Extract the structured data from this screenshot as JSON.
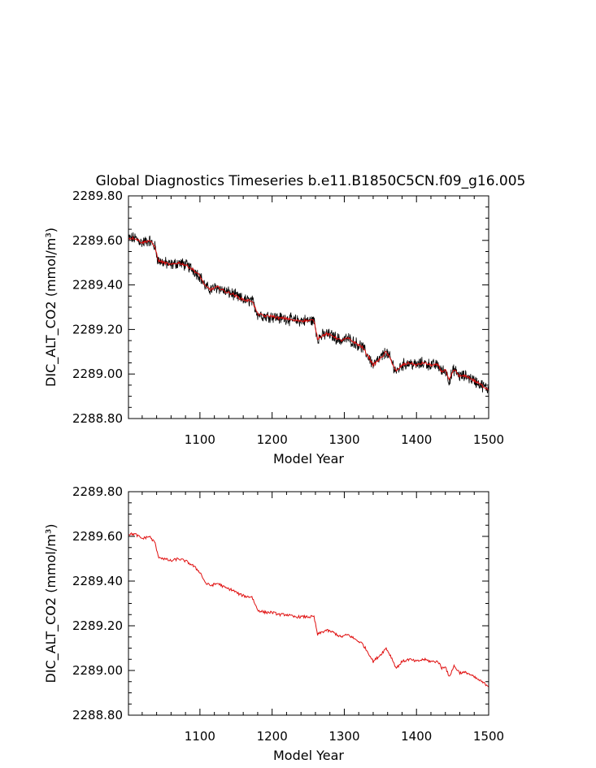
{
  "title": "Global Diagnostics Timeseries b.e11.B1850C5CN.f09_g16.005",
  "colors": {
    "raw": "#000000",
    "smoothed": "#e01010",
    "frame": "#000000"
  },
  "chart_data": [
    {
      "type": "line",
      "xlabel": "Model Year",
      "ylabel": "DIC_ALT_CO2 (mmol/m³)",
      "xlim": [
        1001,
        1500
      ],
      "ylim": [
        2288.8,
        2289.8
      ],
      "xticks": [
        1100,
        1200,
        1300,
        1400,
        1500
      ],
      "xtick_labels": [
        "1100",
        "1200",
        "1300",
        "1400",
        "1500"
      ],
      "yticks": [
        2288.8,
        2289.0,
        2289.2,
        2289.4,
        2289.6,
        2289.8
      ],
      "ytick_labels": [
        "2288.80",
        "2289.00",
        "2289.20",
        "2289.40",
        "2289.60",
        "2289.80"
      ],
      "grid": false,
      "series": [
        {
          "style": "raw-noisy",
          "color": "#000000",
          "x": [
            1001,
            1010,
            1020,
            1030,
            1038,
            1042,
            1050,
            1060,
            1070,
            1080,
            1090,
            1100,
            1108,
            1115,
            1125,
            1135,
            1145,
            1155,
            1165,
            1172,
            1180,
            1190,
            1200,
            1210,
            1220,
            1230,
            1240,
            1250,
            1258,
            1263,
            1268,
            1275,
            1285,
            1295,
            1305,
            1315,
            1325,
            1335,
            1340,
            1350,
            1358,
            1365,
            1372,
            1380,
            1390,
            1400,
            1410,
            1420,
            1430,
            1435,
            1440,
            1445,
            1452,
            1460,
            1470,
            1480,
            1490,
            1500
          ],
          "y": [
            2289.61,
            2289.61,
            2289.59,
            2289.6,
            2289.57,
            2289.51,
            2289.5,
            2289.49,
            2289.5,
            2289.49,
            2289.47,
            2289.44,
            2289.39,
            2289.38,
            2289.39,
            2289.37,
            2289.36,
            2289.34,
            2289.33,
            2289.33,
            2289.27,
            2289.26,
            2289.26,
            2289.25,
            2289.25,
            2289.24,
            2289.24,
            2289.24,
            2289.24,
            2289.16,
            2289.17,
            2289.18,
            2289.17,
            2289.15,
            2289.16,
            2289.14,
            2289.12,
            2289.07,
            2289.04,
            2289.07,
            2289.1,
            2289.06,
            2289.01,
            2289.04,
            2289.05,
            2289.04,
            2289.05,
            2289.04,
            2289.04,
            2289.01,
            2289.02,
            2288.97,
            2289.02,
            2288.99,
            2288.99,
            2288.97,
            2288.95,
            2288.93
          ]
        },
        {
          "style": "smoothed",
          "color": "#e01010",
          "x": [
            1001,
            1010,
            1020,
            1030,
            1038,
            1042,
            1050,
            1060,
            1070,
            1080,
            1090,
            1100,
            1108,
            1115,
            1125,
            1135,
            1145,
            1155,
            1165,
            1172,
            1180,
            1190,
            1200,
            1210,
            1220,
            1230,
            1240,
            1250,
            1258,
            1263,
            1268,
            1275,
            1285,
            1295,
            1305,
            1315,
            1325,
            1335,
            1340,
            1350,
            1358,
            1365,
            1372,
            1380,
            1390,
            1400,
            1410,
            1420,
            1430,
            1435,
            1440,
            1445,
            1452,
            1460,
            1470,
            1480,
            1490,
            1500
          ],
          "y": [
            2289.61,
            2289.61,
            2289.59,
            2289.6,
            2289.57,
            2289.51,
            2289.5,
            2289.49,
            2289.5,
            2289.49,
            2289.47,
            2289.44,
            2289.39,
            2289.38,
            2289.39,
            2289.37,
            2289.36,
            2289.34,
            2289.33,
            2289.33,
            2289.27,
            2289.26,
            2289.26,
            2289.25,
            2289.25,
            2289.24,
            2289.24,
            2289.24,
            2289.24,
            2289.16,
            2289.17,
            2289.18,
            2289.17,
            2289.15,
            2289.16,
            2289.14,
            2289.12,
            2289.07,
            2289.04,
            2289.07,
            2289.1,
            2289.06,
            2289.01,
            2289.04,
            2289.05,
            2289.04,
            2289.05,
            2289.04,
            2289.04,
            2289.01,
            2289.02,
            2288.97,
            2289.02,
            2288.99,
            2288.99,
            2288.97,
            2288.95,
            2288.93
          ]
        }
      ]
    },
    {
      "type": "line",
      "xlabel": "Model Year",
      "ylabel": "DIC_ALT_CO2 (mmol/m³)",
      "xlim": [
        1001,
        1500
      ],
      "ylim": [
        2288.8,
        2289.8
      ],
      "xticks": [
        1100,
        1200,
        1300,
        1400,
        1500
      ],
      "xtick_labels": [
        "1100",
        "1200",
        "1300",
        "1400",
        "1500"
      ],
      "yticks": [
        2288.8,
        2289.0,
        2289.2,
        2289.4,
        2289.6,
        2289.8
      ],
      "ytick_labels": [
        "2288.80",
        "2289.00",
        "2289.20",
        "2289.40",
        "2289.60",
        "2289.80"
      ],
      "grid": false,
      "series": [
        {
          "style": "smoothed",
          "color": "#e01010",
          "x": [
            1001,
            1010,
            1020,
            1030,
            1038,
            1042,
            1050,
            1060,
            1070,
            1080,
            1090,
            1100,
            1108,
            1115,
            1125,
            1135,
            1145,
            1155,
            1165,
            1172,
            1180,
            1190,
            1200,
            1210,
            1220,
            1230,
            1240,
            1250,
            1258,
            1263,
            1268,
            1275,
            1285,
            1295,
            1305,
            1315,
            1325,
            1335,
            1340,
            1350,
            1358,
            1365,
            1372,
            1380,
            1390,
            1400,
            1410,
            1420,
            1430,
            1435,
            1440,
            1445,
            1452,
            1460,
            1470,
            1480,
            1490,
            1500
          ],
          "y": [
            2289.61,
            2289.61,
            2289.59,
            2289.6,
            2289.57,
            2289.51,
            2289.5,
            2289.49,
            2289.5,
            2289.49,
            2289.47,
            2289.44,
            2289.39,
            2289.38,
            2289.39,
            2289.37,
            2289.36,
            2289.34,
            2289.33,
            2289.33,
            2289.27,
            2289.26,
            2289.26,
            2289.25,
            2289.25,
            2289.24,
            2289.24,
            2289.24,
            2289.24,
            2289.16,
            2289.17,
            2289.18,
            2289.17,
            2289.15,
            2289.16,
            2289.14,
            2289.12,
            2289.07,
            2289.04,
            2289.07,
            2289.1,
            2289.06,
            2289.01,
            2289.04,
            2289.05,
            2289.04,
            2289.05,
            2289.04,
            2289.04,
            2289.01,
            2289.02,
            2288.97,
            2289.02,
            2288.99,
            2288.99,
            2288.97,
            2288.95,
            2288.93
          ]
        }
      ]
    }
  ]
}
